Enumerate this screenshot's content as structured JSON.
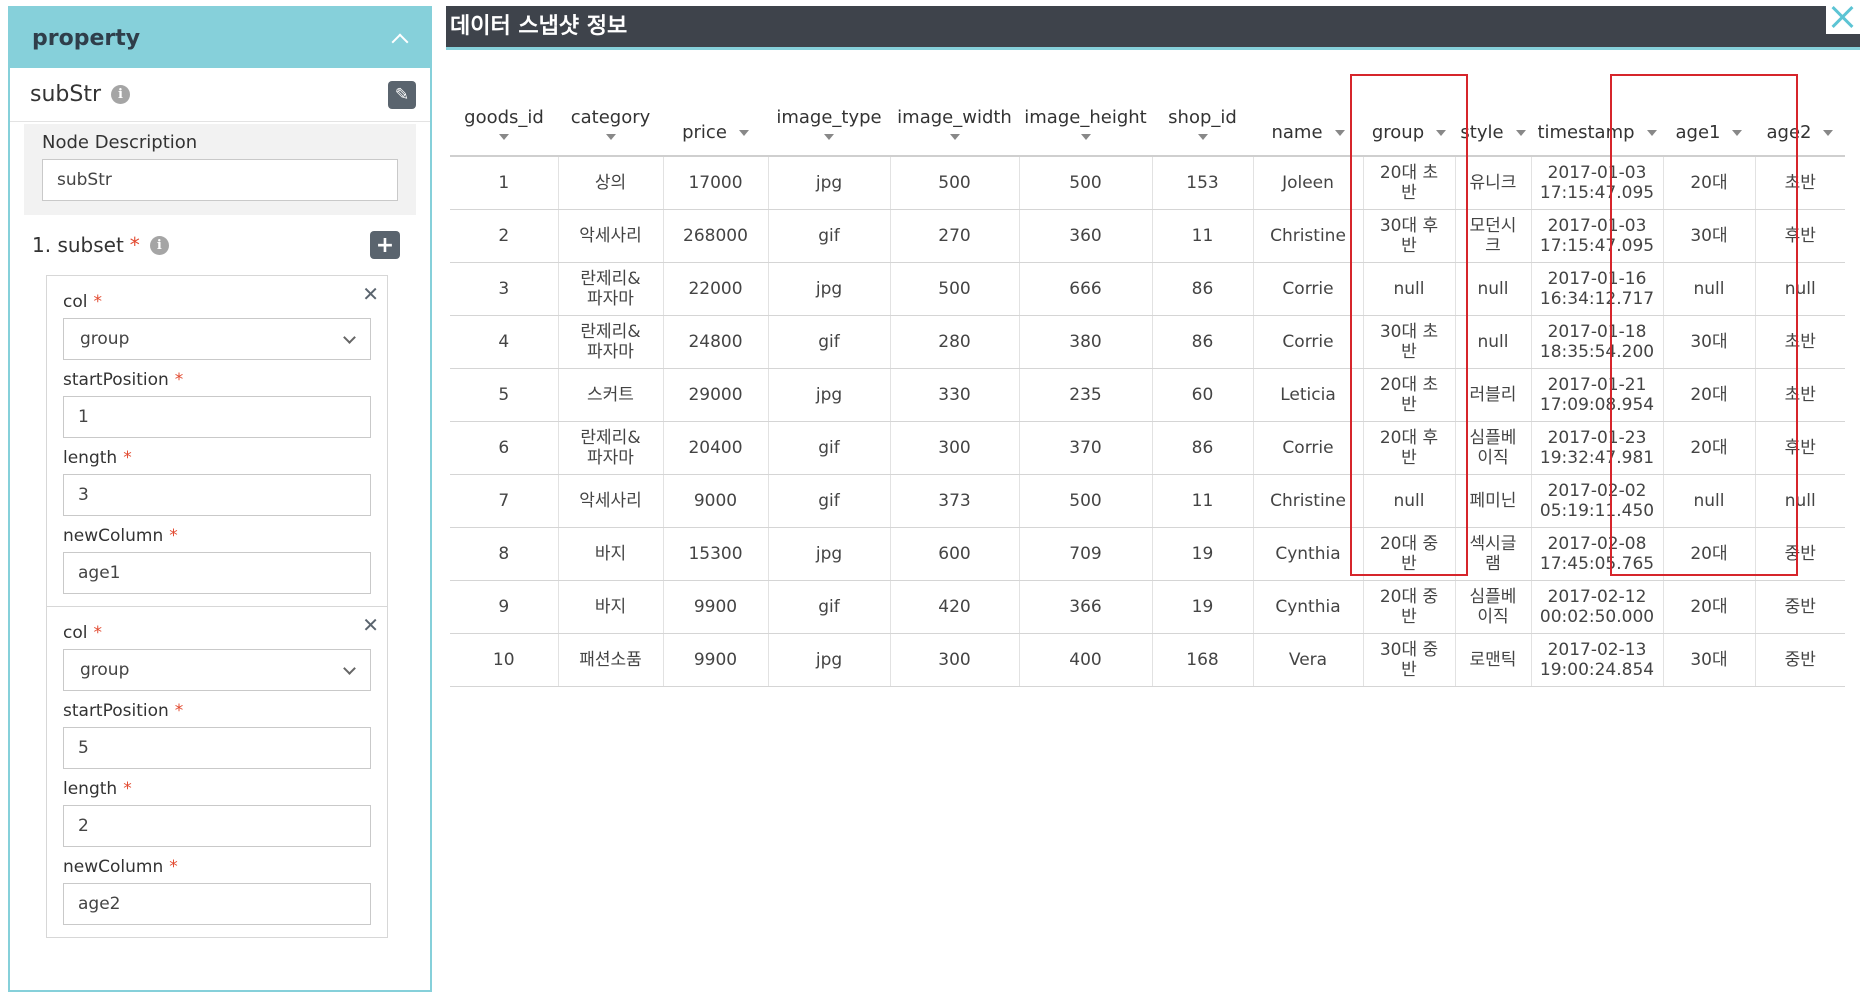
{
  "panel": {
    "title": "property",
    "node_name": "subStr",
    "node_description_label": "Node Description",
    "node_description_value": "subStr",
    "subset_label": "1. subset",
    "required_mark": "*",
    "groups": [
      {
        "col_label": "col",
        "col_value": "group",
        "start_label": "startPosition",
        "start_value": "1",
        "length_label": "length",
        "length_value": "3",
        "newcol_label": "newColumn",
        "newcol_value": "age1"
      },
      {
        "col_label": "col",
        "col_value": "group",
        "start_label": "startPosition",
        "start_value": "5",
        "length_label": "length",
        "length_value": "2",
        "newcol_label": "newColumn",
        "newcol_value": "age2"
      }
    ]
  },
  "snapshot": {
    "title": "데이터 스냅샷 정보",
    "columns": [
      "goods_id",
      "category",
      "price",
      "image_type",
      "image_width",
      "image_height",
      "shop_id",
      "name",
      "group",
      "style",
      "timestamp",
      "age1",
      "age2"
    ],
    "rows": [
      [
        "1",
        "상의",
        "17000",
        "jpg",
        "500",
        "500",
        "153",
        "Joleen",
        "20대 초\n반",
        "유니크",
        "2017-01-03\n17:15:47.095",
        "20대",
        "초반"
      ],
      [
        "2",
        "악세사리",
        "268000",
        "gif",
        "270",
        "360",
        "11",
        "Christine",
        "30대 후\n반",
        "모던시\n크",
        "2017-01-03\n17:15:47.095",
        "30대",
        "후반"
      ],
      [
        "3",
        "란제리&\n파자마",
        "22000",
        "jpg",
        "500",
        "666",
        "86",
        "Corrie",
        "null",
        "null",
        "2017-01-16\n16:34:12.717",
        "null",
        "null"
      ],
      [
        "4",
        "란제리&\n파자마",
        "24800",
        "gif",
        "280",
        "380",
        "86",
        "Corrie",
        "30대 초\n반",
        "null",
        "2017-01-18\n18:35:54.200",
        "30대",
        "초반"
      ],
      [
        "5",
        "스커트",
        "29000",
        "jpg",
        "330",
        "235",
        "60",
        "Leticia",
        "20대 초\n반",
        "러블리",
        "2017-01-21\n17:09:08.954",
        "20대",
        "초반"
      ],
      [
        "6",
        "란제리&\n파자마",
        "20400",
        "gif",
        "300",
        "370",
        "86",
        "Corrie",
        "20대 후\n반",
        "심플베\n이직",
        "2017-01-23\n19:32:47.981",
        "20대",
        "후반"
      ],
      [
        "7",
        "악세사리",
        "9000",
        "gif",
        "373",
        "500",
        "11",
        "Christine",
        "null",
        "페미닌",
        "2017-02-02\n05:19:11.450",
        "null",
        "null"
      ],
      [
        "8",
        "바지",
        "15300",
        "jpg",
        "600",
        "709",
        "19",
        "Cynthia",
        "20대 중\n반",
        "섹시글\n램",
        "2017-02-08\n17:45:05.765",
        "20대",
        "중반"
      ],
      [
        "9",
        "바지",
        "9900",
        "gif",
        "420",
        "366",
        "19",
        "Cynthia",
        "20대 중\n반",
        "심플베\n이직",
        "2017-02-12\n00:02:50.000",
        "20대",
        "중반"
      ],
      [
        "10",
        "패션소품",
        "9900",
        "jpg",
        "300",
        "400",
        "168",
        "Vera",
        "30대 중\n반",
        "로맨틱",
        "2017-02-13\n19:00:24.854",
        "30대",
        "중반"
      ]
    ]
  },
  "colors": {
    "panel_accent": "#86d0da",
    "header_dark": "#3e434b",
    "highlight_red": "#d6252b",
    "required_red": "#e2492f"
  },
  "icons": {
    "panel_collapse": "chevron-up-icon",
    "info": "info-icon",
    "edit": "edit-icon",
    "add": "plus-icon",
    "remove": "close-icon",
    "dropdown": "chevron-down-icon",
    "sort": "sort-arrow-icon",
    "window_close": "close-icon"
  }
}
